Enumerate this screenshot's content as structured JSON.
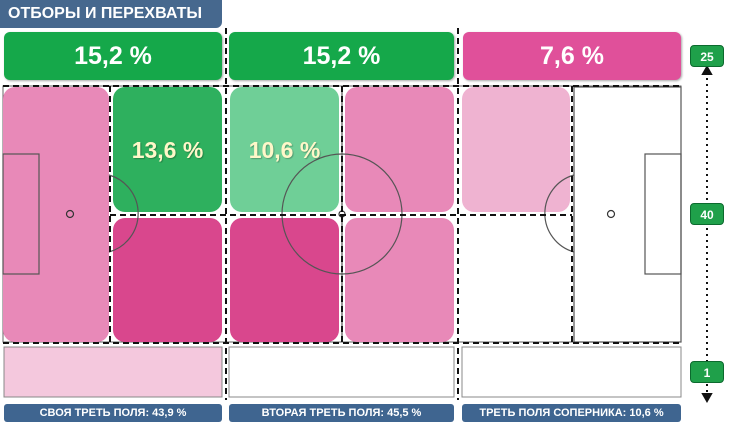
{
  "title": "ОТБОРЫ И ПЕРЕХВАТЫ",
  "top_row": [
    {
      "label": "15,2 %",
      "color": "#15a84a"
    },
    {
      "label": "15,2 %",
      "color": "#15a84a"
    },
    {
      "label": "7,6 %",
      "color": "#e0509a"
    }
  ],
  "zones": [
    {
      "label": "13,6 %",
      "color": "#2eb05e"
    },
    {
      "label": "10,6 %",
      "color": "#6fcf97"
    }
  ],
  "bottom_row_colors": [
    "#f4c8dd",
    "#ffffff",
    "#ffffff"
  ],
  "side_counts": [
    {
      "label": "25"
    },
    {
      "label": "40"
    },
    {
      "label": "1"
    }
  ],
  "footer": [
    {
      "label": "СВОЯ ТРЕТЬ ПОЛЯ: 43,9 %"
    },
    {
      "label": "ВТОРАЯ ТРЕТЬ ПОЛЯ: 45,5 %"
    },
    {
      "label": "ТРЕТЬ ПОЛЯ СОПЕРНИКА: 10,6 %"
    }
  ]
}
